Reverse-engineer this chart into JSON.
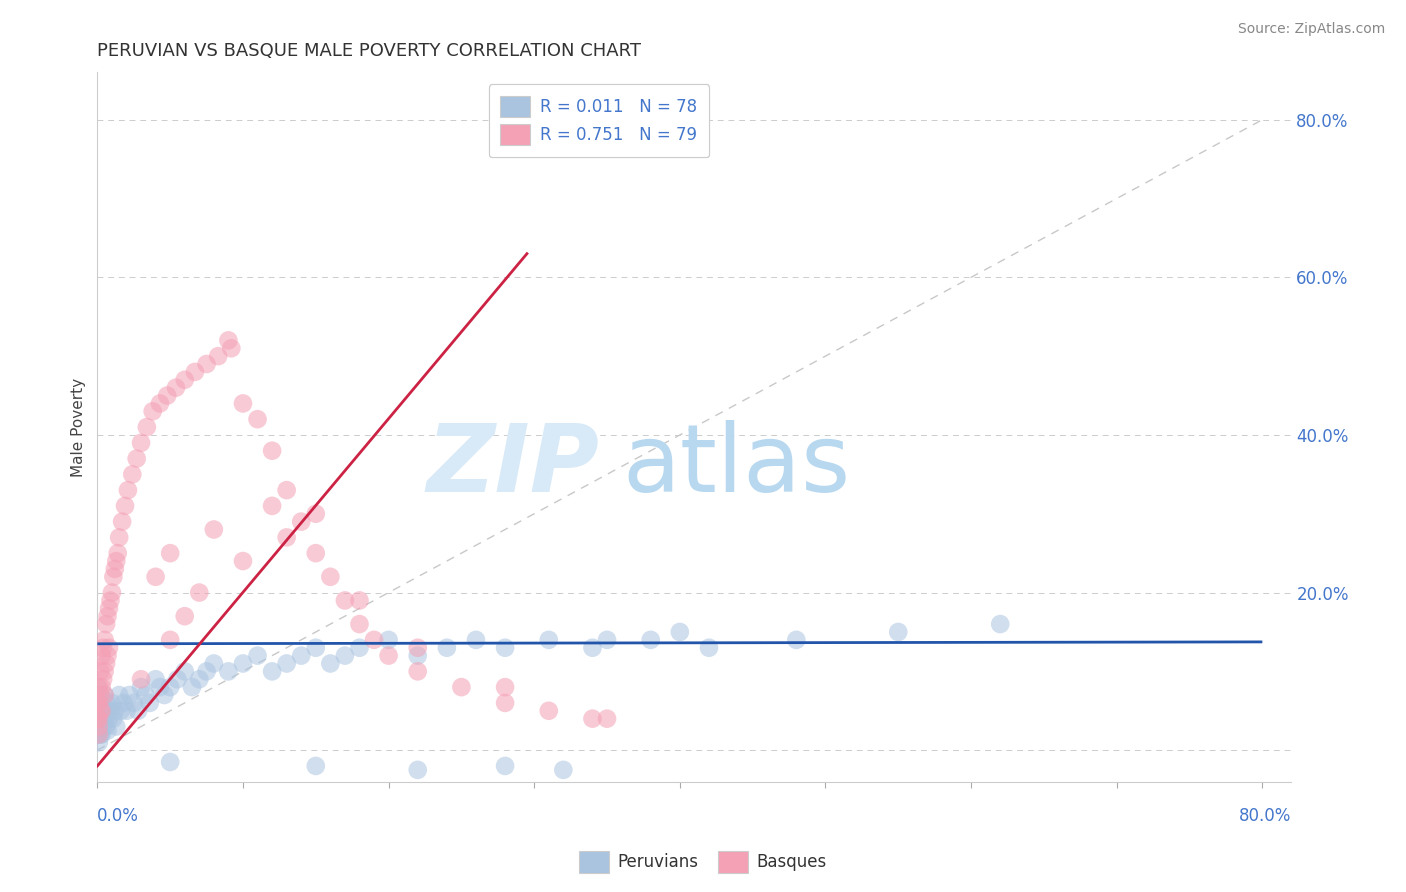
{
  "title": "PERUVIAN VS BASQUE MALE POVERTY CORRELATION CHART",
  "source": "Source: ZipAtlas.com",
  "ylabel": "Male Poverty",
  "ylim": [
    -0.04,
    0.86
  ],
  "xlim": [
    0.0,
    0.82
  ],
  "legend1_label": "R = 0.011   N = 78",
  "legend2_label": "R = 0.751   N = 79",
  "legend_peruvians": "Peruvians",
  "legend_basques": "Basques",
  "blue_color": "#aac4e0",
  "pink_color": "#f4a0b5",
  "blue_line_color": "#2255aa",
  "pink_line_color": "#cc2244",
  "diag_line_color": "#c8c8c8",
  "title_color": "#333333",
  "label_color": "#4477cc",
  "watermark_zip_color": "#d8eaf8",
  "watermark_atlas_color": "#b8d8f0",
  "background_color": "#ffffff",
  "grid_color": "#cccccc",
  "blue_trend_y_intercept": 0.135,
  "blue_trend_slope": 0.003,
  "pink_trend_x0": 0.0,
  "pink_trend_y0": -0.02,
  "pink_trend_x1": 0.295,
  "pink_trend_y1": 0.63,
  "peruvian_x": [
    0.0,
    0.001,
    0.001,
    0.001,
    0.001,
    0.001,
    0.001,
    0.001,
    0.002,
    0.002,
    0.002,
    0.002,
    0.003,
    0.003,
    0.003,
    0.004,
    0.004,
    0.005,
    0.005,
    0.006,
    0.006,
    0.007,
    0.007,
    0.008,
    0.009,
    0.01,
    0.011,
    0.012,
    0.013,
    0.015,
    0.016,
    0.018,
    0.02,
    0.022,
    0.025,
    0.028,
    0.03,
    0.033,
    0.036,
    0.04,
    0.043,
    0.046,
    0.05,
    0.055,
    0.06,
    0.065,
    0.07,
    0.075,
    0.08,
    0.09,
    0.1,
    0.11,
    0.12,
    0.13,
    0.14,
    0.15,
    0.16,
    0.17,
    0.18,
    0.2,
    0.22,
    0.24,
    0.26,
    0.28,
    0.31,
    0.34,
    0.38,
    0.42,
    0.48,
    0.55,
    0.62,
    0.35,
    0.4,
    0.28,
    0.32,
    0.15,
    0.22,
    0.05
  ],
  "peruvian_y": [
    0.08,
    0.06,
    0.05,
    0.04,
    0.03,
    0.025,
    0.02,
    0.01,
    0.07,
    0.05,
    0.03,
    0.02,
    0.06,
    0.04,
    0.02,
    0.05,
    0.03,
    0.07,
    0.04,
    0.06,
    0.03,
    0.05,
    0.025,
    0.04,
    0.05,
    0.06,
    0.04,
    0.05,
    0.03,
    0.07,
    0.05,
    0.06,
    0.05,
    0.07,
    0.06,
    0.05,
    0.08,
    0.07,
    0.06,
    0.09,
    0.08,
    0.07,
    0.08,
    0.09,
    0.1,
    0.08,
    0.09,
    0.1,
    0.11,
    0.1,
    0.11,
    0.12,
    0.1,
    0.11,
    0.12,
    0.13,
    0.11,
    0.12,
    0.13,
    0.14,
    0.12,
    0.13,
    0.14,
    0.13,
    0.14,
    0.13,
    0.14,
    0.13,
    0.14,
    0.15,
    0.16,
    0.14,
    0.15,
    -0.02,
    -0.025,
    -0.02,
    -0.025,
    -0.015
  ],
  "basque_x": [
    0.0,
    0.0,
    0.001,
    0.001,
    0.001,
    0.001,
    0.001,
    0.002,
    0.002,
    0.002,
    0.003,
    0.003,
    0.003,
    0.004,
    0.004,
    0.005,
    0.005,
    0.005,
    0.006,
    0.006,
    0.007,
    0.007,
    0.008,
    0.008,
    0.009,
    0.01,
    0.011,
    0.012,
    0.013,
    0.014,
    0.015,
    0.017,
    0.019,
    0.021,
    0.024,
    0.027,
    0.03,
    0.034,
    0.038,
    0.043,
    0.048,
    0.054,
    0.06,
    0.067,
    0.075,
    0.083,
    0.092,
    0.1,
    0.11,
    0.12,
    0.13,
    0.14,
    0.15,
    0.16,
    0.17,
    0.18,
    0.19,
    0.2,
    0.22,
    0.25,
    0.28,
    0.31,
    0.34,
    0.04,
    0.05,
    0.08,
    0.12,
    0.18,
    0.22,
    0.28,
    0.35,
    0.09,
    0.15,
    0.06,
    0.1,
    0.07,
    0.13,
    0.05,
    0.03
  ],
  "basque_y": [
    0.06,
    0.04,
    0.08,
    0.06,
    0.04,
    0.03,
    0.02,
    0.1,
    0.07,
    0.05,
    0.12,
    0.08,
    0.05,
    0.13,
    0.09,
    0.14,
    0.1,
    0.07,
    0.16,
    0.11,
    0.17,
    0.12,
    0.18,
    0.13,
    0.19,
    0.2,
    0.22,
    0.23,
    0.24,
    0.25,
    0.27,
    0.29,
    0.31,
    0.33,
    0.35,
    0.37,
    0.39,
    0.41,
    0.43,
    0.44,
    0.45,
    0.46,
    0.47,
    0.48,
    0.49,
    0.5,
    0.51,
    0.44,
    0.42,
    0.38,
    0.33,
    0.29,
    0.25,
    0.22,
    0.19,
    0.16,
    0.14,
    0.12,
    0.1,
    0.08,
    0.06,
    0.05,
    0.04,
    0.22,
    0.25,
    0.28,
    0.31,
    0.19,
    0.13,
    0.08,
    0.04,
    0.52,
    0.3,
    0.17,
    0.24,
    0.2,
    0.27,
    0.14,
    0.09
  ]
}
